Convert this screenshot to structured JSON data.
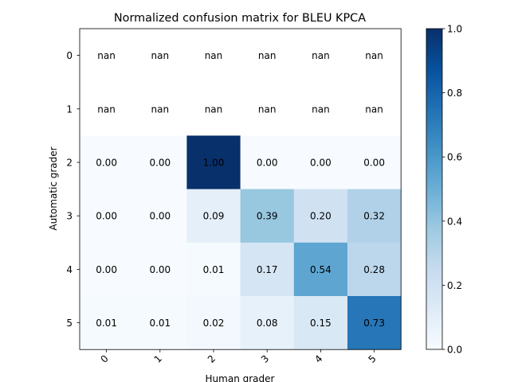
{
  "chart_data": {
    "type": "heatmap",
    "title": "Normalized confusion matrix for BLEU KPCA",
    "xlabel": "Human grader",
    "ylabel": "Automatic grader",
    "x_tick_labels": [
      "0",
      "1",
      "2",
      "3",
      "4",
      "5"
    ],
    "y_tick_labels": [
      "0",
      "1",
      "2",
      "3",
      "4",
      "5"
    ],
    "cells": [
      [
        "nan",
        "nan",
        "nan",
        "nan",
        "nan",
        "nan"
      ],
      [
        "nan",
        "nan",
        "nan",
        "nan",
        "nan",
        "nan"
      ],
      [
        "0.00",
        "0.00",
        "1.00",
        "0.00",
        "0.00",
        "0.00"
      ],
      [
        "0.00",
        "0.00",
        "0.09",
        "0.39",
        "0.20",
        "0.32"
      ],
      [
        "0.00",
        "0.00",
        "0.01",
        "0.17",
        "0.54",
        "0.28"
      ],
      [
        "0.01",
        "0.01",
        "0.02",
        "0.08",
        "0.15",
        "0.73"
      ]
    ],
    "colormap": "Blues",
    "vmin": 0.0,
    "vmax": 1.0,
    "colorbar_ticks": [
      "0.0",
      "0.2",
      "0.4",
      "0.6",
      "0.8",
      "1.0"
    ],
    "grid": false
  }
}
